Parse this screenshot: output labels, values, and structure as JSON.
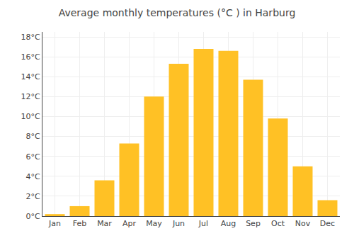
{
  "chart_data": {
    "type": "bar",
    "title": "Average monthly temperatures (°C ) in Harburg",
    "categories": [
      "Jan",
      "Feb",
      "Mar",
      "Apr",
      "May",
      "Jun",
      "Jul",
      "Aug",
      "Sep",
      "Oct",
      "Nov",
      "Dec"
    ],
    "values": [
      0.2,
      1.0,
      3.6,
      7.3,
      12.0,
      15.3,
      16.8,
      16.6,
      13.7,
      9.8,
      5.0,
      1.6
    ],
    "color": "#FFC125",
    "ylim": [
      0,
      18.5
    ],
    "yticks": [
      {
        "value": 0,
        "label": "0°C"
      },
      {
        "value": 2,
        "label": "2°C"
      },
      {
        "value": 4,
        "label": "4°C"
      },
      {
        "value": 6,
        "label": "6°C"
      },
      {
        "value": 8,
        "label": "8°C"
      },
      {
        "value": 10,
        "label": "10°C"
      },
      {
        "value": 12,
        "label": "12°C"
      },
      {
        "value": 14,
        "label": "14°C"
      },
      {
        "value": 16,
        "label": "16°C"
      },
      {
        "value": 18,
        "label": "18°C"
      }
    ],
    "grid": true
  }
}
